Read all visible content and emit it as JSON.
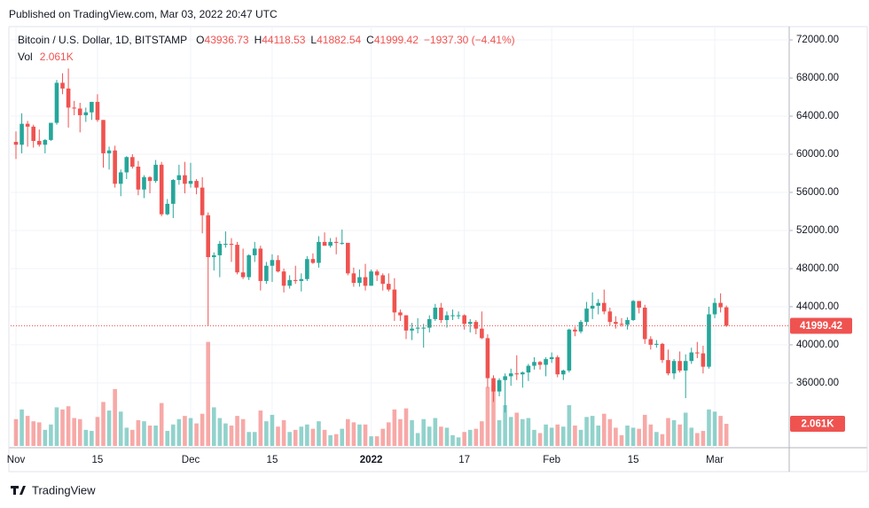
{
  "header": {
    "published": "Published on TradingView.com, Mar 03, 2022 20:47 UTC",
    "footer": "TradingView"
  },
  "chart_data": {
    "type": "candlestick",
    "symbol": "Bitcoin / U.S. Dollar, 1D, BITSTAMP",
    "legend_letters": [
      "O",
      "H",
      "L",
      "C"
    ],
    "change": "−1937.30 (−4.41%)",
    "volume_title": "Vol",
    "volume_label": "2.061K",
    "up_color": "#26a69a",
    "down_color": "#ef5350",
    "grid": true,
    "ylim": [
      29200,
      73400
    ],
    "yticks": [
      {
        "value": 36000,
        "label": "36000.00"
      },
      {
        "value": 40000,
        "label": "40000.00"
      },
      {
        "value": 44000,
        "label": "44000.00"
      },
      {
        "value": 48000,
        "label": "48000.00"
      },
      {
        "value": 52000,
        "label": "52000.00"
      },
      {
        "value": 56000,
        "label": "56000.00"
      },
      {
        "value": 60000,
        "label": "60000.00"
      },
      {
        "value": 64000,
        "label": "64000.00"
      },
      {
        "value": 68000,
        "label": "68000.00"
      },
      {
        "value": 72000,
        "label": "72000.00"
      }
    ],
    "xticks": [
      {
        "value": "Nov 1",
        "label": "Nov"
      },
      {
        "value": "Nov 15",
        "label": "15"
      },
      {
        "value": "Dec 1",
        "label": "Dec"
      },
      {
        "value": "Dec 15",
        "label": "15"
      },
      {
        "value": "Jan 1",
        "label": "2022"
      },
      {
        "value": "Jan 17",
        "label": "17"
      },
      {
        "value": "Feb 1",
        "label": "Feb"
      },
      {
        "value": "Feb 15",
        "label": "15"
      },
      {
        "value": "Mar 1",
        "label": "Mar"
      }
    ],
    "x": [
      "Nov 1",
      "Nov 2",
      "Nov 3",
      "Nov 4",
      "Nov 5",
      "Nov 6",
      "Nov 7",
      "Nov 8",
      "Nov 9",
      "Nov 10",
      "Nov 11",
      "Nov 12",
      "Nov 13",
      "Nov 14",
      "Nov 15",
      "Nov 16",
      "Nov 17",
      "Nov 18",
      "Nov 19",
      "Nov 20",
      "Nov 21",
      "Nov 22",
      "Nov 23",
      "Nov 24",
      "Nov 25",
      "Nov 26",
      "Nov 27",
      "Nov 28",
      "Nov 29",
      "Nov 30",
      "Dec 1",
      "Dec 2",
      "Dec 3",
      "Dec 4",
      "Dec 5",
      "Dec 6",
      "Dec 7",
      "Dec 8",
      "Dec 9",
      "Dec 10",
      "Dec 11",
      "Dec 12",
      "Dec 13",
      "Dec 14",
      "Dec 15",
      "Dec 16",
      "Dec 17",
      "Dec 18",
      "Dec 19",
      "Dec 20",
      "Dec 21",
      "Dec 22",
      "Dec 23",
      "Dec 24",
      "Dec 25",
      "Dec 26",
      "Dec 27",
      "Dec 28",
      "Dec 29",
      "Dec 30",
      "Dec 31",
      "Jan 1",
      "Jan 2",
      "Jan 3",
      "Jan 4",
      "Jan 5",
      "Jan 6",
      "Jan 7",
      "Jan 8",
      "Jan 9",
      "Jan 10",
      "Jan 11",
      "Jan 12",
      "Jan 13",
      "Jan 14",
      "Jan 15",
      "Jan 16",
      "Jan 17",
      "Jan 18",
      "Jan 19",
      "Jan 20",
      "Jan 21",
      "Jan 22",
      "Jan 23",
      "Jan 24",
      "Jan 25",
      "Jan 26",
      "Jan 27",
      "Jan 28",
      "Jan 29",
      "Jan 30",
      "Jan 31",
      "Feb 1",
      "Feb 2",
      "Feb 3",
      "Feb 4",
      "Feb 5",
      "Feb 6",
      "Feb 7",
      "Feb 8",
      "Feb 9",
      "Feb 10",
      "Feb 11",
      "Feb 12",
      "Feb 13",
      "Feb 14",
      "Feb 15",
      "Feb 16",
      "Feb 17",
      "Feb 18",
      "Feb 19",
      "Feb 20",
      "Feb 21",
      "Feb 22",
      "Feb 23",
      "Feb 24",
      "Feb 25",
      "Feb 26",
      "Feb 27",
      "Feb 28",
      "Mar 1",
      "Mar 2",
      "Mar 3"
    ],
    "open": [
      61300,
      61000,
      63200,
      62900,
      61400,
      61000,
      61500,
      63300,
      67500,
      66900,
      64900,
      64800,
      64100,
      64400,
      65500,
      63600,
      60100,
      60400,
      56900,
      58100,
      59700,
      58700,
      56300,
      57600,
      57200,
      58900,
      53700,
      54800,
      57300,
      57800,
      56900,
      57200,
      56500,
      53600,
      49200,
      49400,
      50600,
      50600,
      50500,
      47600,
      47100,
      49400,
      50100,
      46700,
      48300,
      48900,
      47700,
      46200,
      46800,
      46700,
      46900,
      49000,
      48600,
      50800,
      50400,
      50800,
      50700,
      50700,
      47500,
      46500,
      47100,
      46200,
      47700,
      47300,
      46400,
      45800,
      43400,
      43100,
      41500,
      41700,
      41800,
      41800,
      42700,
      43900,
      42600,
      43100,
      43100,
      43100,
      42200,
      42400,
      41700,
      40700,
      36500,
      35100,
      36300,
      36700,
      37000,
      36900,
      37100,
      37800,
      38200,
      37900,
      38500,
      38700,
      36900,
      37300,
      41600,
      41400,
      42400,
      43800,
      44100,
      44400,
      43500,
      42400,
      42200,
      42100,
      42600,
      44600,
      43900,
      40600,
      40000,
      40100,
      38400,
      37000,
      38300,
      37300,
      38300,
      39200,
      39100,
      37700,
      43200,
      44400,
      43936.73
    ],
    "high": [
      62400,
      64300,
      63500,
      63100,
      62600,
      61600,
      63300,
      67800,
      68500,
      69000,
      65600,
      65400,
      64900,
      65500,
      66300,
      63600,
      60800,
      60900,
      58400,
      59800,
      60000,
      59300,
      57800,
      57700,
      59400,
      59200,
      55300,
      57400,
      58900,
      59200,
      59100,
      57400,
      57600,
      53900,
      49700,
      50900,
      51900,
      51200,
      50800,
      50100,
      49500,
      50800,
      50400,
      48700,
      49500,
      49400,
      48000,
      47300,
      48300,
      47500,
      49300,
      49600,
      51400,
      51800,
      51200,
      51300,
      52100,
      50700,
      48100,
      47900,
      48500,
      47900,
      47900,
      47500,
      47500,
      47000,
      43700,
      43100,
      42300,
      42800,
      42200,
      43100,
      44300,
      44400,
      43500,
      43700,
      43500,
      43200,
      42700,
      42600,
      43500,
      41100,
      36800,
      36500,
      37000,
      37500,
      38900,
      37200,
      38000,
      38700,
      38300,
      38700,
      39200,
      38900,
      37400,
      41700,
      41900,
      42600,
      44500,
      45500,
      44800,
      45800,
      43900,
      43000,
      42800,
      42900,
      44700,
      44600,
      44200,
      40900,
      40500,
      40200,
      39500,
      38500,
      39300,
      39000,
      39700,
      40300,
      39900,
      44000,
      44900,
      45400,
      44118.53
    ],
    "low": [
      59500,
      60100,
      60800,
      60700,
      60800,
      60100,
      61400,
      63100,
      66300,
      62800,
      64100,
      62300,
      63400,
      63600,
      63400,
      58600,
      58400,
      56500,
      55600,
      57400,
      58500,
      55700,
      55400,
      55900,
      57000,
      53500,
      53600,
      53300,
      56800,
      55900,
      56500,
      55800,
      51700,
      42000,
      47800,
      47100,
      50200,
      48700,
      47400,
      46900,
      46800,
      48700,
      45700,
      46400,
      46600,
      47600,
      45500,
      45900,
      46400,
      45600,
      46700,
      48500,
      48100,
      50400,
      50200,
      49500,
      50500,
      47300,
      46100,
      46100,
      45700,
      46200,
      46700,
      45700,
      45600,
      42500,
      42500,
      40600,
      40500,
      41200,
      39700,
      41300,
      42500,
      42300,
      41800,
      42600,
      42700,
      41600,
      41300,
      41100,
      40600,
      35500,
      34000,
      34600,
      32900,
      35700,
      36300,
      35500,
      36200,
      37400,
      37400,
      36700,
      38100,
      36600,
      36300,
      37100,
      40900,
      41200,
      42000,
      42700,
      43200,
      43200,
      42000,
      41700,
      41900,
      41600,
      42500,
      43300,
      40100,
      39500,
      39700,
      38100,
      36800,
      36400,
      37100,
      34400,
      38000,
      38600,
      37000,
      37500,
      42800,
      43400,
      41882.54
    ],
    "close": [
      61000,
      63200,
      62900,
      61400,
      61000,
      61500,
      63300,
      67500,
      66900,
      64900,
      64800,
      64100,
      64400,
      65500,
      63600,
      60100,
      60400,
      56900,
      58100,
      59700,
      58700,
      56300,
      57600,
      57200,
      58900,
      53700,
      54800,
      57300,
      57800,
      56900,
      57200,
      56500,
      53600,
      49200,
      49400,
      50600,
      50600,
      50500,
      47600,
      47100,
      49400,
      50100,
      46700,
      48300,
      48900,
      47700,
      46200,
      46800,
      46700,
      46900,
      49000,
      48600,
      50800,
      50400,
      50800,
      50700,
      50700,
      47500,
      46500,
      47100,
      46200,
      47700,
      47300,
      46400,
      45800,
      43400,
      43100,
      41500,
      41700,
      41800,
      41800,
      42700,
      43900,
      42600,
      43100,
      43100,
      43100,
      42200,
      42400,
      41700,
      40700,
      36500,
      35100,
      36300,
      36700,
      37000,
      36900,
      37100,
      37800,
      38200,
      37900,
      38500,
      38700,
      36900,
      37300,
      41600,
      41400,
      42400,
      43800,
      44100,
      44400,
      43500,
      42400,
      42200,
      42100,
      42600,
      44600,
      43900,
      40600,
      40000,
      40100,
      38400,
      37000,
      38300,
      37300,
      38300,
      39200,
      39100,
      37700,
      43200,
      44400,
      43936.73,
      41999.42
    ],
    "volume": [
      2500,
      3400,
      2800,
      2300,
      2200,
      1500,
      2000,
      3600,
      3400,
      3700,
      2600,
      2500,
      1500,
      1400,
      2700,
      4100,
      3300,
      5300,
      3200,
      1700,
      1500,
      2400,
      2300,
      1900,
      1900,
      4000,
      1400,
      2000,
      2500,
      2800,
      2600,
      2100,
      3000,
      9700,
      3600,
      2600,
      2100,
      1900,
      2800,
      2500,
      1300,
      1300,
      3300,
      2300,
      2900,
      1800,
      2400,
      1300,
      1500,
      1800,
      2000,
      1600,
      2300,
      1500,
      1000,
      1100,
      1600,
      2500,
      2200,
      2000,
      2000,
      900,
      900,
      1600,
      2200,
      3400,
      2500,
      3500,
      2400,
      1200,
      2500,
      1800,
      2600,
      1800,
      1700,
      1000,
      800,
      1300,
      1500,
      1600,
      2300,
      5500,
      5700,
      2400,
      3800,
      2700,
      3100,
      2500,
      2600,
      1500,
      1200,
      2000,
      1700,
      2000,
      1800,
      3800,
      1900,
      1500,
      2700,
      2800,
      1900,
      3000,
      2500,
      1700,
      1000,
      1900,
      1700,
      1600,
      2900,
      2000,
      1300,
      1100,
      2600,
      2400,
      2000,
      3100,
      1700,
      1200,
      1400,
      3400,
      3200,
      2800,
      2061
    ]
  }
}
